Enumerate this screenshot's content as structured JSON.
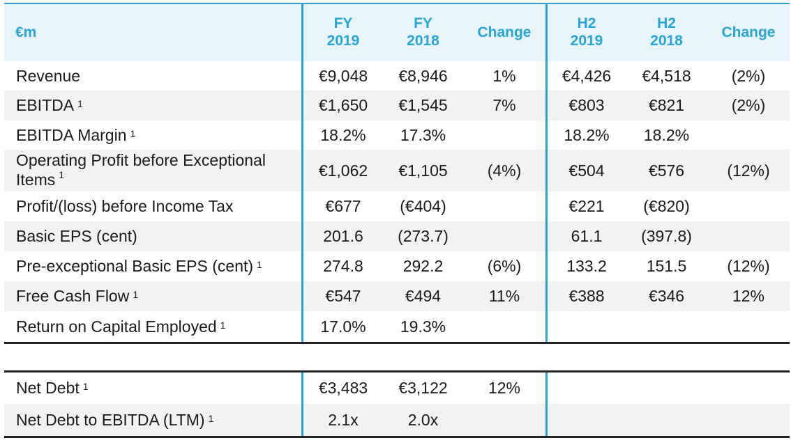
{
  "table": {
    "header": {
      "label": "€m",
      "cols": [
        {
          "line1": "FY",
          "line2": "2019"
        },
        {
          "line1": "FY",
          "line2": "2018"
        },
        {
          "line1": "Change",
          "line2": ""
        },
        {
          "line1": "H2",
          "line2": "2019"
        },
        {
          "line1": "H2",
          "line2": "2018"
        },
        {
          "line1": "Change",
          "line2": ""
        }
      ]
    },
    "rows": [
      {
        "label": "Revenue",
        "sup": "",
        "values": [
          "€9,048",
          "€8,946",
          "1%",
          "€4,426",
          "€4,518",
          "(2%)"
        ]
      },
      {
        "label": "EBITDA",
        "sup": "1",
        "values": [
          "€1,650",
          "€1,545",
          "7%",
          "€803",
          "€821",
          "(2%)"
        ]
      },
      {
        "label": "EBITDA Margin",
        "sup": "1",
        "values": [
          "18.2%",
          "17.3%",
          "",
          "18.2%",
          "18.2%",
          ""
        ]
      },
      {
        "label": "Operating Profit before Exceptional",
        "label2": "Items",
        "sup": "1",
        "values": [
          "€1,062",
          "€1,105",
          "(4%)",
          "€504",
          "€576",
          "(12%)"
        ]
      },
      {
        "label": "Profit/(loss) before Income Tax",
        "sup": "",
        "values": [
          "€677",
          "(€404)",
          "",
          "€221",
          "(€820)",
          ""
        ]
      },
      {
        "label": "Basic EPS (cent)",
        "sup": "",
        "values": [
          "201.6",
          "(273.7)",
          "",
          "61.1",
          "(397.8)",
          ""
        ]
      },
      {
        "label": "Pre-exceptional Basic EPS (cent)",
        "sup": "1",
        "values": [
          "274.8",
          "292.2",
          "(6%)",
          "133.2",
          "151.5",
          "(12%)"
        ]
      },
      {
        "label": "Free Cash Flow",
        "sup": "1",
        "values": [
          "€547",
          "€494",
          "11%",
          "€388",
          "€346",
          "12%"
        ]
      },
      {
        "label": "Return on Capital Employed",
        "sup": "1",
        "values": [
          "17.0%",
          "19.3%",
          "",
          "",
          "",
          ""
        ]
      }
    ],
    "debt_rows": [
      {
        "label": "Net Debt",
        "sup": "1",
        "values": [
          "€3,483",
          "€3,122",
          "12%",
          "",
          "",
          ""
        ]
      },
      {
        "label": "Net Debt to EBITDA (LTM)",
        "sup": "1",
        "values": [
          "2.1x",
          "2.0x",
          "",
          "",
          "",
          ""
        ]
      }
    ]
  }
}
